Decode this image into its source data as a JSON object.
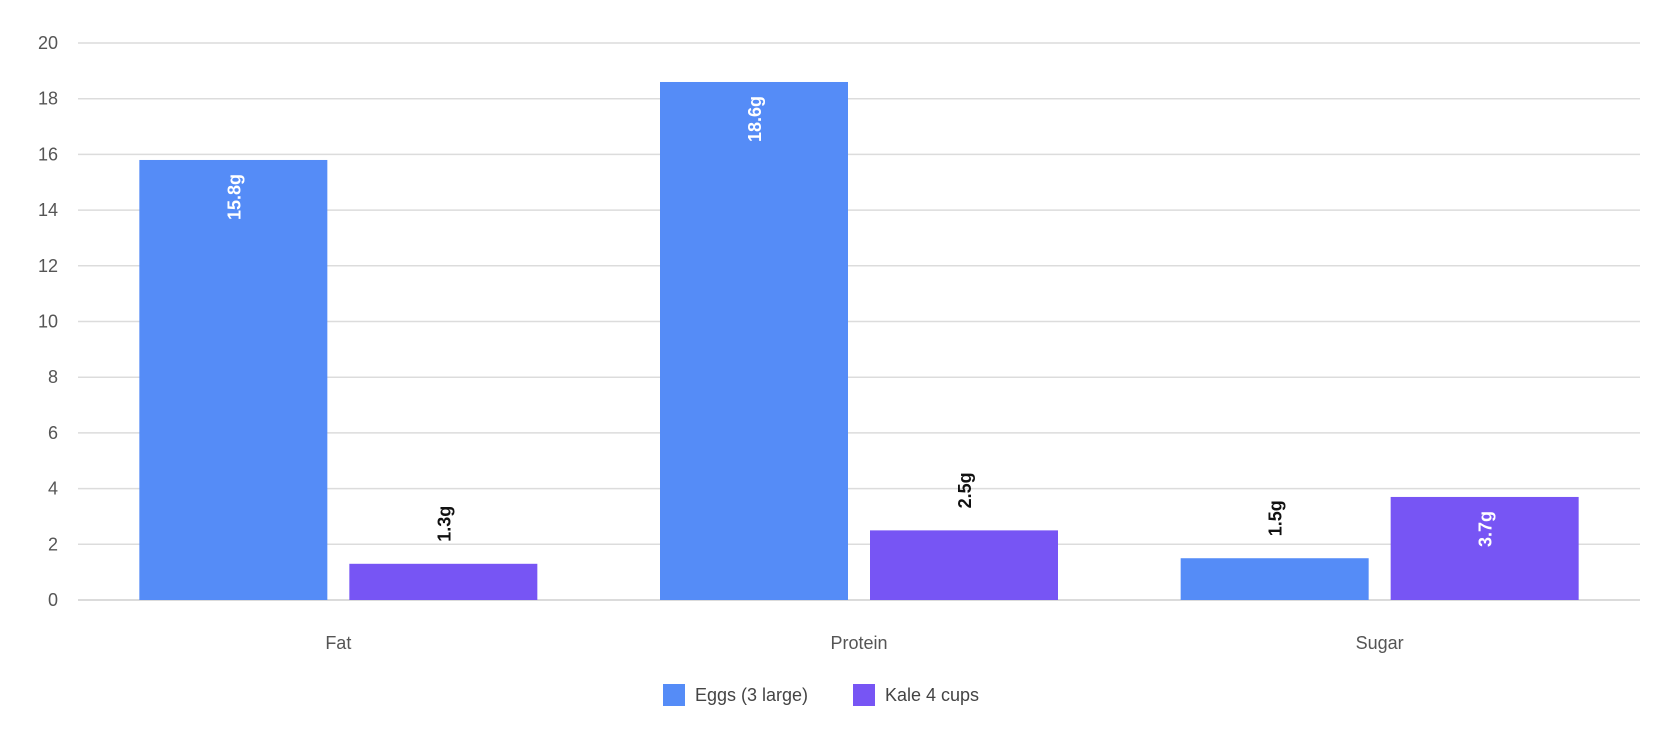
{
  "chart_data": {
    "type": "bar",
    "categories": [
      "Fat",
      "Protein",
      "Sugar"
    ],
    "series": [
      {
        "name": "Eggs (3 large)",
        "values": [
          15.8,
          18.6,
          1.5
        ],
        "labels": [
          "15.8g",
          "18.6g",
          "1.5g"
        ],
        "color": "#558CF7"
      },
      {
        "name": "Kale 4 cups",
        "values": [
          1.3,
          2.5,
          3.7
        ],
        "labels": [
          "1.3g",
          "2.5g",
          "3.7g"
        ],
        "color": "#7755F4"
      }
    ],
    "title": "",
    "xlabel": "",
    "ylabel": "",
    "ylim": [
      0,
      20
    ],
    "yticks": [
      0,
      2,
      4,
      6,
      8,
      10,
      12,
      14,
      16,
      18,
      20
    ],
    "grid": true,
    "legend": "bottom-center",
    "label_color_inside": "#ffffff",
    "label_color_outside": "#111111"
  }
}
